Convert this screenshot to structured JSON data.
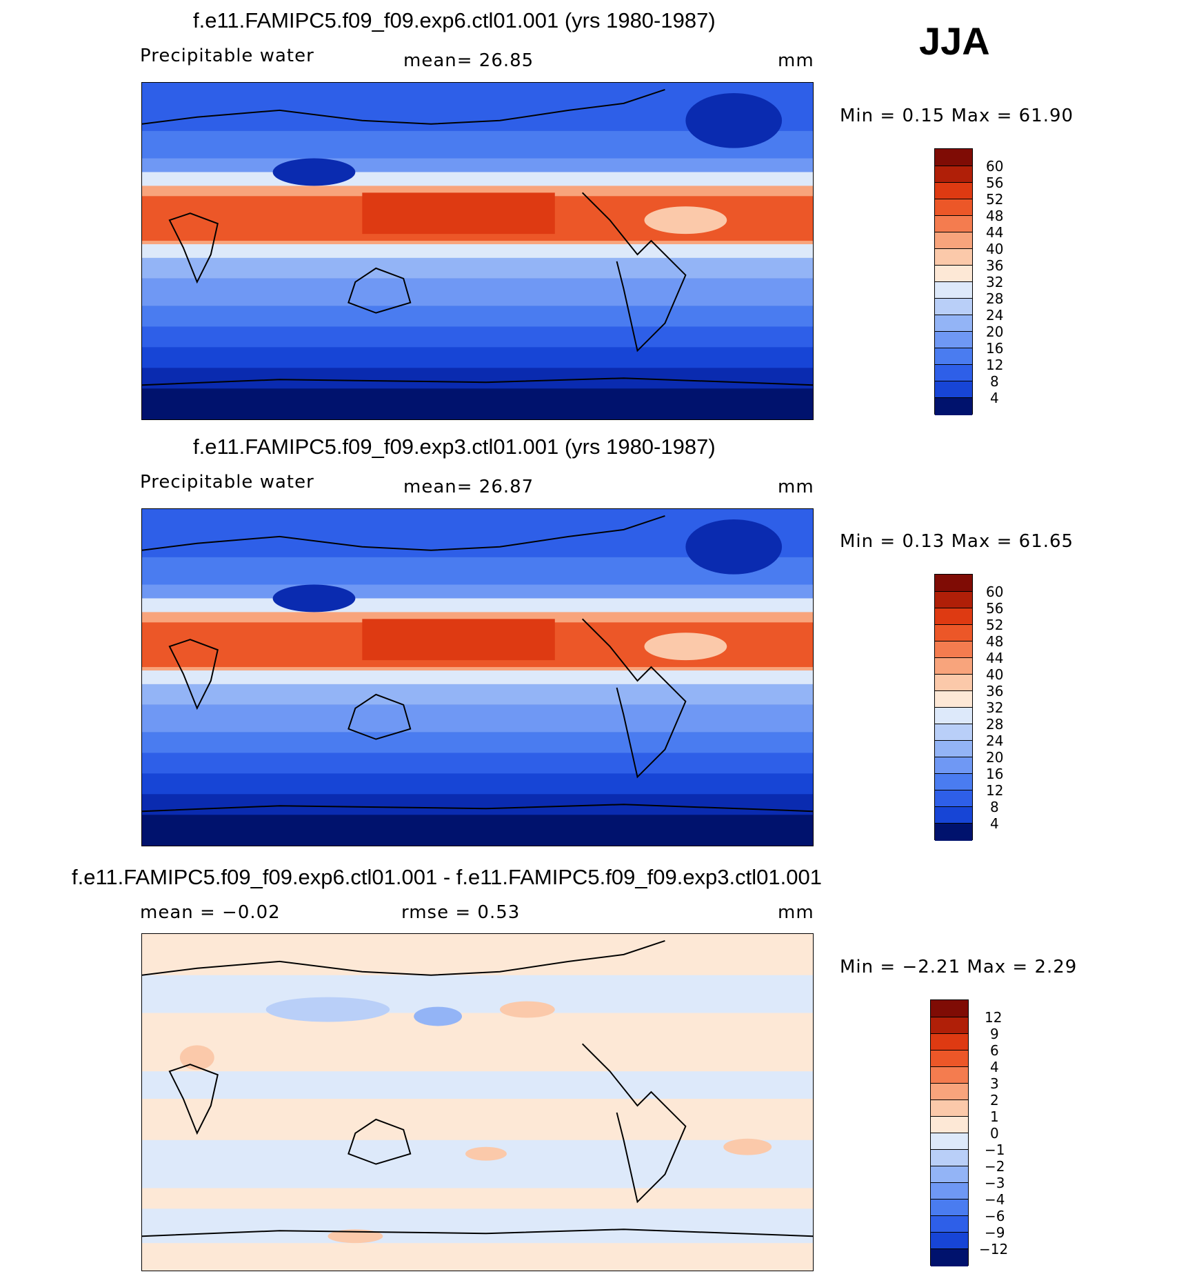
{
  "season": "JJA",
  "colors": {
    "abs_scale": [
      "#00126d",
      "#0a2bb0",
      "#1745d6",
      "#2e5fe8",
      "#4a7cf0",
      "#6f98f4",
      "#93b4f6",
      "#b9cff8",
      "#dde9fa",
      "#fde8d6",
      "#fbc9aa",
      "#f8a47c",
      "#f47c4f",
      "#ec5728",
      "#de3a12",
      "#b01f08",
      "#7f0c05"
    ],
    "diff_scale": [
      "#00126d",
      "#0a2bb0",
      "#1745d6",
      "#2e5fe8",
      "#4a7cf0",
      "#6f98f4",
      "#93b4f6",
      "#b9cff8",
      "#dde9fa",
      "#fde8d6",
      "#fbc9aa",
      "#f8a47c",
      "#f47c4f",
      "#ec5728",
      "#de3a12",
      "#b01f08",
      "#7f0c05"
    ]
  },
  "panels": [
    {
      "title": "f.e11.FAMIPC5.f09_f09.exp6.ctl01.001 (yrs 1980-1987)",
      "variable": "Precipitable water",
      "mean_text": "mean=   26.85",
      "units": "mm",
      "minmax_text": "Min =    0.15  Max =   61.90",
      "colorbar_labels": [
        "60",
        "56",
        "52",
        "48",
        "44",
        "40",
        "36",
        "32",
        "28",
        "24",
        "20",
        "16",
        "12",
        "8",
        "4"
      ]
    },
    {
      "title": "f.e11.FAMIPC5.f09_f09.exp3.ctl01.001 (yrs 1980-1987)",
      "variable": "Precipitable water",
      "mean_text": "mean=   26.87",
      "units": "mm",
      "minmax_text": "Min =    0.13  Max =   61.65",
      "colorbar_labels": [
        "60",
        "56",
        "52",
        "48",
        "44",
        "40",
        "36",
        "32",
        "28",
        "24",
        "20",
        "16",
        "12",
        "8",
        "4"
      ]
    },
    {
      "title": "f.e11.FAMIPC5.f09_f09.exp6.ctl01.001 - f.e11.FAMIPC5.f09_f09.exp3.ctl01.001",
      "mean_text": "mean =   −0.02",
      "rmse_text": "rmse =    0.53",
      "units": "mm",
      "minmax_text": "Min =   −2.21  Max =    2.29",
      "colorbar_labels": [
        "12",
        "9",
        "6",
        "4",
        "3",
        "2",
        "1",
        "0",
        "−1",
        "−2",
        "−3",
        "−4",
        "−6",
        "−9",
        "−12"
      ]
    }
  ]
}
